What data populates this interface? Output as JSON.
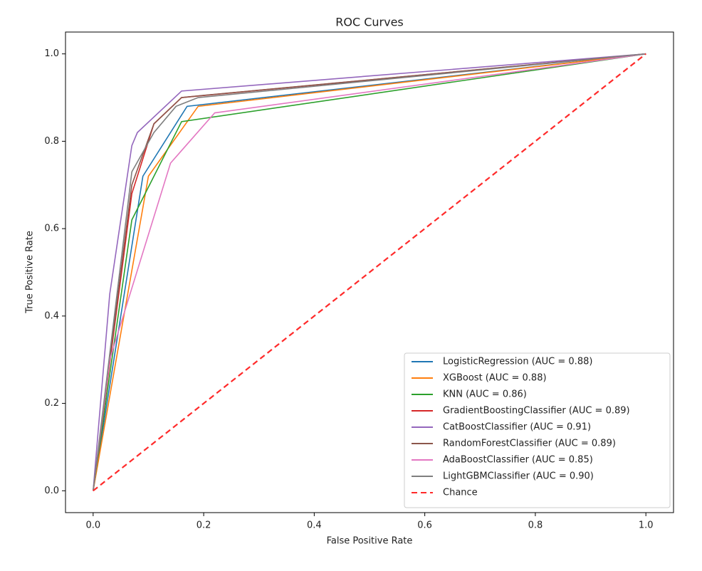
{
  "chart_data": {
    "type": "line",
    "title": "ROC Curves",
    "x_label": "False Positive Rate",
    "y_label": "True Positive Rate",
    "xlim": [
      -0.05,
      1.05
    ],
    "ylim": [
      -0.05,
      1.05
    ],
    "xticks": [
      {
        "value": 0,
        "label": "0.0"
      },
      0.2,
      0.4,
      0.6,
      0.8,
      {
        "value": 1,
        "label": "1.0"
      }
    ],
    "yticks": [
      {
        "value": 0,
        "label": "0.0"
      },
      0.2,
      0.4,
      0.6,
      0.8,
      {
        "value": 1,
        "label": "1.0"
      }
    ],
    "grid": false,
    "legend": "lower right",
    "series": [
      {
        "name": "LogisticRegression (AUC = 0.88)",
        "color": "#1f77b4",
        "x": [
          0,
          0.09,
          0.17,
          1
        ],
        "values": [
          0,
          0.72,
          0.88,
          1
        ]
      },
      {
        "name": "XGBoost (AUC = 0.88)",
        "color": "#ff7f0e",
        "x": [
          0,
          0.1,
          0.19,
          1
        ],
        "values": [
          0,
          0.72,
          0.88,
          1
        ]
      },
      {
        "name": "KNN (AUC = 0.86)",
        "color": "#2ca02c",
        "x": [
          0,
          0.07,
          0.16,
          1
        ],
        "values": [
          0,
          0.62,
          0.845,
          1
        ]
      },
      {
        "name": "GradientBoostingClassifier (AUC = 0.89)",
        "color": "#d62728",
        "x": [
          0,
          0.07,
          0.11,
          0.16,
          1
        ],
        "values": [
          0,
          0.68,
          0.84,
          0.9,
          1
        ]
      },
      {
        "name": "CatBoostClassifier (AUC = 0.91)",
        "color": "#9467bd",
        "x": [
          0,
          0.03,
          0.07,
          0.08,
          0.16,
          1
        ],
        "values": [
          0,
          0.45,
          0.79,
          0.82,
          0.915,
          1
        ]
      },
      {
        "name": "RandomForestClassifier (AUC = 0.89)",
        "color": "#8c564b",
        "x": [
          0,
          0.07,
          0.11,
          0.16,
          0.2,
          1
        ],
        "values": [
          0,
          0.7,
          0.84,
          0.9,
          0.905,
          1
        ]
      },
      {
        "name": "AdaBoostClassifier (AUC = 0.85)",
        "color": "#e377c2",
        "x": [
          0,
          0.03,
          0.14,
          0.22,
          1
        ],
        "values": [
          0,
          0.3,
          0.75,
          0.865,
          1
        ]
      },
      {
        "name": "LightGBMClassifier (AUC = 0.90)",
        "color": "#7f7f7f",
        "x": [
          0,
          0.07,
          0.11,
          0.15,
          0.19,
          1
        ],
        "values": [
          0,
          0.73,
          0.82,
          0.88,
          0.9,
          1
        ]
      },
      {
        "name": "Chance",
        "color": "#ff2a2a",
        "linestyle": "dashed",
        "x": [
          0,
          1
        ],
        "values": [
          0,
          1
        ]
      }
    ]
  }
}
